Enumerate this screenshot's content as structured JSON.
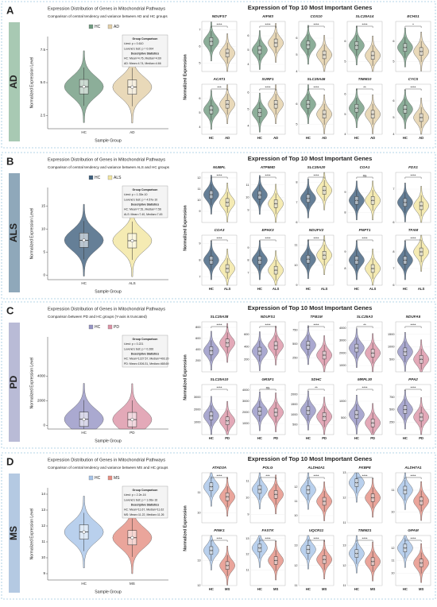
{
  "chart_data": [
    {
      "type": "violin",
      "panel_letter": "A",
      "panel_label": "AD",
      "panel_color": "#a8c9b3",
      "title": "Expression Distribution of Genes in Mitochondrial Pathways",
      "subtitle": "Comparison of central tendency and variance between AD and HC groups",
      "xlabel": "Sample Group",
      "ylabel": "Normalized Expression Level",
      "categories": [
        "HC",
        "AD"
      ],
      "colors": [
        "#6f9a80",
        "#e3cfa8"
      ],
      "values": [
        4.69,
        4.66
      ],
      "ylim": [
        1.5,
        8.5
      ],
      "yticks": [
        2.5,
        {
          "value": 5,
          "label": "5.0"
        },
        7.5
      ],
      "stats": [
        "Group Comparison",
        "t-test: p = 0.610",
        "Levene's test: p = 0.004",
        "Descriptive Statistics",
        "HC: Mean=4.76, Median=4.69",
        "AD: Mean=4.74, Median=4.66"
      ]
    },
    {
      "type": "violin-grid",
      "title": "Expression of Top 10 Most Important Genes",
      "ylabel": "Normalized Expression",
      "categories": [
        "HC",
        "AD"
      ],
      "colors": [
        "#6f9a80",
        "#e3cfa8"
      ],
      "panels": [
        {
          "title": "NDUFS7",
          "sig": "****",
          "values": [
            6.3,
            5.6
          ],
          "ylim": [
            4.5,
            7.5
          ],
          "yticks": [
            5,
            6,
            7
          ]
        },
        {
          "title": "AIFM3",
          "sig": "****",
          "values": [
            5.0,
            5.5
          ],
          "ylim": [
            3.5,
            7
          ],
          "yticks": [
            4,
            5,
            6
          ]
        },
        {
          "title": "COX10",
          "sig": "****",
          "values": [
            5.6,
            5.0
          ],
          "ylim": [
            4,
            7
          ],
          "yticks": [
            4,
            5,
            6
          ]
        },
        {
          "title": "SLC25A14",
          "sig": "****",
          "values": [
            5.8,
            5.3
          ],
          "ylim": [
            4.5,
            7
          ],
          "yticks": [
            5,
            6
          ]
        },
        {
          "title": "ECHS1",
          "sig": "*",
          "values": [
            5.7,
            5.5
          ],
          "ylim": [
            4.5,
            7
          ],
          "yticks": [
            5,
            6
          ]
        },
        {
          "title": "ACAT1",
          "sig": "***",
          "values": [
            5.2,
            5.6
          ],
          "ylim": [
            3.5,
            7
          ],
          "yticks": [
            4,
            5,
            6
          ]
        },
        {
          "title": "SURF1",
          "sig": "****",
          "values": [
            4.8,
            5.3
          ],
          "ylim": [
            3.5,
            6.5
          ],
          "yticks": [
            4,
            5,
            6
          ]
        },
        {
          "title": "SLC25A46",
          "sig": "****",
          "values": [
            6.0,
            5.5
          ],
          "ylim": [
            4.5,
            7
          ],
          "yticks": [
            5,
            6
          ]
        },
        {
          "title": "TIMM10",
          "sig": "**",
          "values": [
            5.3,
            5.0
          ],
          "ylim": [
            4,
            6.5
          ],
          "yticks": [
            4,
            5,
            6
          ]
        },
        {
          "title": "CYCS",
          "sig": "****",
          "values": [
            5.5,
            5.0
          ],
          "ylim": [
            4,
            7
          ],
          "yticks": [
            4,
            5,
            6
          ]
        }
      ]
    },
    {
      "type": "violin",
      "panel_letter": "B",
      "panel_label": "ALS",
      "panel_color": "#8fa8ba",
      "title": "Expression Distribution of Genes in Mitochondrial Pathways",
      "subtitle": "Comparison of central tendency and variance between ALS and HC groups",
      "xlabel": "Sample Group",
      "ylabel": "Normalized Expression Level",
      "categories": [
        "HC",
        "ALS"
      ],
      "colors": [
        "#3f5f7d",
        "#f2e6a0"
      ],
      "values": [
        7.56,
        7.45
      ],
      "ylim": [
        -1,
        19
      ],
      "yticks": [
        0,
        5,
        10,
        15
      ],
      "stats": [
        "Group Comparison",
        "t-test: p = 1.33e-10",
        "Levene's test: p = 4.57e-10",
        "Descriptive Statistics",
        "HC: Mean=7.51, Median=7.56",
        "ALS: Mean=7.40, Median=7.45"
      ]
    },
    {
      "type": "violin-grid",
      "title": "Expression of Top 10 Most Important Genes",
      "ylabel": "Normalized Expression",
      "categories": [
        "HC",
        "ALS"
      ],
      "colors": [
        "#3f5f7d",
        "#f2e6a0"
      ],
      "panels": [
        {
          "title": "NUBPL",
          "sig": "****",
          "values": [
            10.5,
            9.8
          ],
          "ylim": [
            8,
            12.5
          ],
          "yticks": [
            9,
            10,
            11,
            12
          ]
        },
        {
          "title": "ATP5MD",
          "sig": "****",
          "values": [
            10.2,
            9.5
          ],
          "ylim": [
            8,
            12
          ],
          "yticks": [
            9,
            10,
            11
          ]
        },
        {
          "title": "SLC25A20",
          "sig": "****",
          "values": [
            7.2,
            7.6
          ],
          "ylim": [
            6,
            8.5
          ],
          "yticks": [
            6,
            7,
            8
          ]
        },
        {
          "title": "COA1",
          "sig": "ns",
          "values": [
            8.6,
            8.6
          ],
          "ylim": [
            7.5,
            10
          ],
          "yticks": [
            8,
            9
          ]
        },
        {
          "title": "FDX1",
          "sig": "****",
          "values": [
            6.6,
            6.5
          ],
          "ylim": [
            6,
            7.5
          ],
          "yticks": [
            6,
            7
          ]
        },
        {
          "title": "COA3",
          "sig": "****",
          "values": [
            8.0,
            7.5
          ],
          "ylim": [
            6.5,
            9.5
          ],
          "yticks": [
            7,
            8,
            9
          ]
        },
        {
          "title": "EPHX3",
          "sig": "****",
          "values": [
            8.0,
            7.2
          ],
          "ylim": [
            6,
            10
          ],
          "yticks": [
            7,
            8,
            9
          ]
        },
        {
          "title": "NDUFV2",
          "sig": "****",
          "values": [
            10.3,
            10.5
          ],
          "ylim": [
            9,
            11.5
          ],
          "yticks": [
            9,
            10,
            11
          ]
        },
        {
          "title": "PNPT1",
          "sig": "****",
          "values": [
            8.5,
            8.0
          ],
          "ylim": [
            7,
            10
          ],
          "yticks": [
            8,
            9
          ]
        },
        {
          "title": "TFAM",
          "sig": "****",
          "values": [
            7.5,
            8.0
          ],
          "ylim": [
            6,
            9
          ],
          "yticks": [
            6,
            7,
            8
          ]
        }
      ]
    },
    {
      "type": "violin",
      "panel_letter": "C",
      "panel_label": "PD",
      "panel_color": "#b9bbd6",
      "title": "Expression Distribution of Genes in Mitochondrial Pathways",
      "subtitle": "Comparison between PD and HC groups (Y-axis is truncated)",
      "xlabel": "Sample Group",
      "ylabel": "Normalized Expression Level",
      "categories": [
        "HC",
        "PD"
      ],
      "colors": [
        "#9594c4",
        "#dc93a6"
      ],
      "values": [
        493.2,
        468.69
      ],
      "ylim": [
        -300,
        7200
      ],
      "yticks": [
        0,
        2000,
        4000
      ],
      "stats": [
        "Group Comparison",
        "t-test: p = 0.221",
        "Levene's test: p = 0.266",
        "Descriptive Statistics",
        "HC: Mean=1227.57, Median=493.20",
        "PD: Mean=1306.31, Median=468.69"
      ]
    },
    {
      "type": "violin-grid",
      "title": "Expression of Top 10 Most Important Genes",
      "ylabel": "Normalized Expression",
      "categories": [
        "HC",
        "PD"
      ],
      "colors": [
        "#9594c4",
        "#dc93a6"
      ],
      "panels": [
        {
          "title": "SLC25A38",
          "sig": "****",
          "values": [
            380,
            520
          ],
          "ylim": [
            0,
            900
          ],
          "yticks": [
            200,
            400,
            600,
            800
          ]
        },
        {
          "title": "NDUFS1",
          "sig": "****",
          "values": [
            330,
            420
          ],
          "ylim": [
            0,
            800
          ],
          "yticks": [
            200,
            400,
            600
          ]
        },
        {
          "title": "TFB1M",
          "sig": "****",
          "values": [
            480,
            300
          ],
          "ylim": [
            0,
            900
          ],
          "yticks": [
            250,
            500,
            750
          ]
        },
        {
          "title": "SLC25A3",
          "sig": "**",
          "values": [
            2400,
            2000
          ],
          "ylim": [
            500,
            4500
          ],
          "yticks": [
            1000,
            2000,
            3000,
            4000
          ]
        },
        {
          "title": "NDUFA5",
          "sig": "****",
          "values": [
            800,
            500
          ],
          "ylim": [
            0,
            2000
          ],
          "yticks": [
            500,
            1000,
            1500
          ]
        },
        {
          "title": "SLC25A10",
          "sig": "****",
          "values": [
            1500,
            1100
          ],
          "ylim": [
            0,
            4000
          ],
          "yticks": [
            1000,
            2000,
            3000
          ]
        },
        {
          "title": "GRSF1",
          "sig": "ns",
          "values": [
            2100,
            2000
          ],
          "ylim": [
            0,
            4500
          ],
          "yticks": [
            1000,
            2000,
            3000,
            4000
          ]
        },
        {
          "title": "SDHC",
          "sig": "**",
          "values": [
            1200,
            900
          ],
          "ylim": [
            0,
            2500
          ],
          "yticks": [
            500,
            1000,
            1500,
            2000
          ]
        },
        {
          "title": "MRPL30",
          "sig": "****",
          "values": [
            600,
            350
          ],
          "ylim": [
            0,
            1500
          ],
          "yticks": [
            500,
            1000
          ]
        },
        {
          "title": "PPA2",
          "sig": "****",
          "values": [
            500,
            350
          ],
          "ylim": [
            0,
            1000
          ],
          "yticks": [
            250,
            500,
            750
          ]
        }
      ]
    },
    {
      "type": "violin",
      "panel_letter": "D",
      "panel_label": "MS",
      "panel_color": "#b4c9e2",
      "title": "Expression Distribution of Genes in Mitochondrial Pathways",
      "subtitle": "Comparison of central tendency and variance between MS and HC groups",
      "xlabel": "Sample Group",
      "ylabel": "Normalized Expression Level",
      "categories": [
        "HC",
        "MS"
      ],
      "colors": [
        "#a7c4e8",
        "#e58f82"
      ],
      "values": [
        11.62,
        11.26
      ],
      "ylim": [
        8.6,
        14.4
      ],
      "yticks": [
        9,
        10,
        11,
        12,
        13,
        14
      ],
      "stats": [
        "Group Comparison",
        "t-test: p = 2.2e-16",
        "Levene's test: p = 1.06e-16",
        "Descriptive Statistics",
        "HC: Mean=11.67, Median=11.62",
        "MS: Mean=11.22, Median=11.26"
      ]
    },
    {
      "type": "violin-grid",
      "title": "Expression of Top 10 Most Important Genes",
      "ylabel": "Normalized Expression",
      "categories": [
        "HC",
        "MS"
      ],
      "colors": [
        "#a7c4e8",
        "#e58f82"
      ],
      "panels": [
        {
          "title": "ATAD3A",
          "sig": "****",
          "values": [
            11.3,
            10.8
          ],
          "ylim": [
            9.5,
            12
          ],
          "yticks": [
            10,
            11
          ]
        },
        {
          "title": "POLG",
          "sig": "***",
          "values": [
            10.5,
            10.2
          ],
          "ylim": [
            8.5,
            11.5
          ],
          "yticks": [
            9,
            10,
            11
          ]
        },
        {
          "title": "ALDH4A1",
          "sig": "****",
          "values": [
            11.8,
            11.0
          ],
          "ylim": [
            9.5,
            13
          ],
          "yticks": [
            10,
            11,
            12
          ]
        },
        {
          "title": "FKBP8",
          "sig": "****",
          "values": [
            12.6,
            12.0
          ],
          "ylim": [
            11,
            13
          ],
          "yticks": [
            11,
            12,
            13
          ]
        },
        {
          "title": "ALDH7A1",
          "sig": "****",
          "values": [
            11.0,
            10.5
          ],
          "ylim": [
            9.5,
            11.8
          ],
          "yticks": [
            10,
            11
          ]
        },
        {
          "title": "PINK1",
          "sig": "****",
          "values": [
            13.4,
            12.8
          ],
          "ylim": [
            12,
            14
          ],
          "yticks": [
            12,
            13
          ]
        },
        {
          "title": "FASTK",
          "sig": "****",
          "values": [
            12.4,
            11.6
          ],
          "ylim": [
            10,
            13.2
          ],
          "yticks": [
            11,
            12,
            13
          ]
        },
        {
          "title": "UQCR11",
          "sig": "****",
          "values": [
            12.8,
            12.3
          ],
          "ylim": [
            11,
            13.5
          ],
          "yticks": [
            11,
            12,
            13
          ]
        },
        {
          "title": "TIMM21",
          "sig": "****",
          "values": [
            12.6,
            12.2
          ],
          "ylim": [
            11,
            13.5
          ],
          "yticks": [
            11,
            12,
            13
          ]
        },
        {
          "title": "GPAM",
          "sig": "****",
          "values": [
            12.0,
            10.8
          ],
          "ylim": [
            9,
            13
          ],
          "yticks": [
            10,
            11,
            12
          ]
        }
      ]
    }
  ]
}
